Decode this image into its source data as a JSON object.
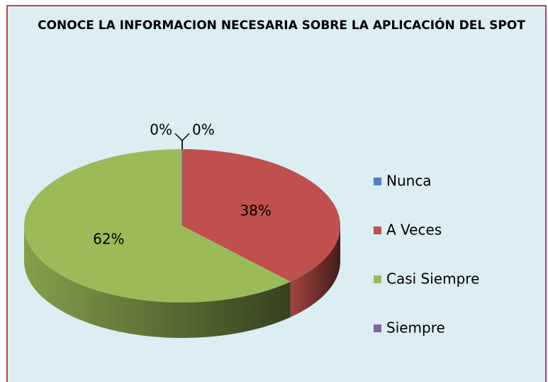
{
  "chart_data": {
    "type": "pie",
    "title": "CONOCE LA INFORMACION NECESARIA SOBRE LA APLICACIÓN DEL SPOT",
    "categories": [
      "Nunca",
      "A Veces",
      "Casi Siempre",
      "Siempre"
    ],
    "values": [
      0,
      38,
      62,
      0
    ],
    "value_labels": [
      "0%",
      "38%",
      "62%",
      "0%"
    ],
    "colors": [
      "#4f81bd",
      "#c0504d",
      "#9bbb59",
      "#8064a2"
    ],
    "legend": "right"
  }
}
